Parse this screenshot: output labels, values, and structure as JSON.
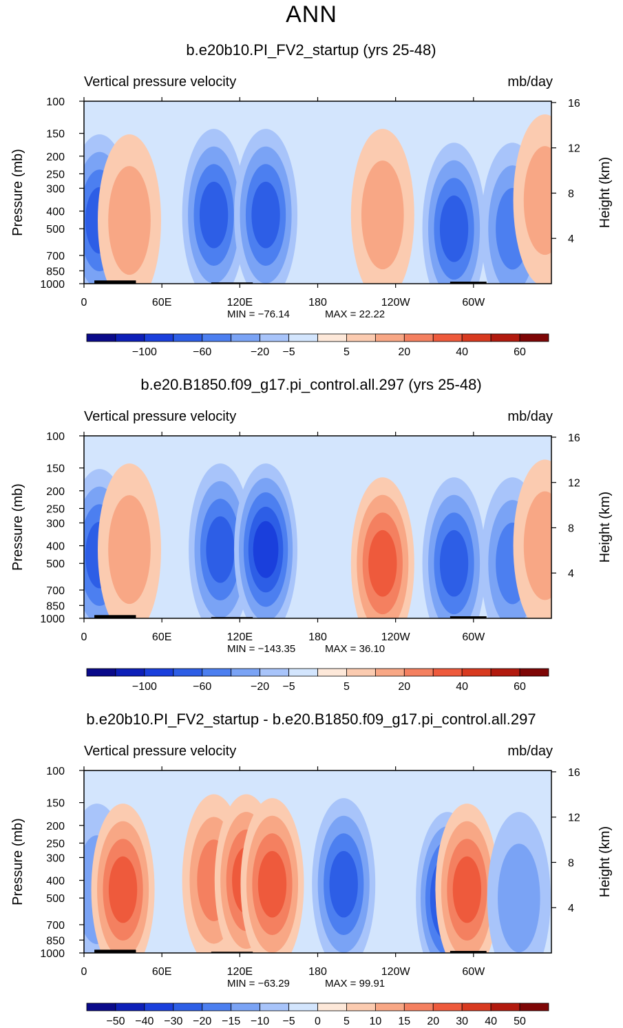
{
  "page_title": "ANN",
  "colors": {
    "bar_scale": [
      "#0a0a8a",
      "#0d1fb8",
      "#1a3fdc",
      "#2d5ee6",
      "#4c7ff0",
      "#7aa3f5",
      "#a8c4fa",
      "#d3e5fd",
      "#fde8d9",
      "#fbcbb0",
      "#f8a785",
      "#f48060",
      "#ee5a3c",
      "#d83a20",
      "#b21a0e",
      "#7e0606"
    ],
    "grid_line": "#000000",
    "topography": "#000000"
  },
  "chart_data": [
    {
      "type": "heatmap",
      "title": "b.e20b10.PI_FV2_startup (yrs 25-48)",
      "left_label": "Vertical pressure velocity",
      "right_label": "mb/day",
      "ylabel_left": "Pressure (mb)",
      "ylabel_right": "Height (km)",
      "x_ticks": [
        "0",
        "60E",
        "120E",
        "180",
        "120W",
        "60W"
      ],
      "x_tick_values": [
        0,
        60,
        120,
        180,
        240,
        300
      ],
      "xlim": [
        0,
        360
      ],
      "y_ticks": [
        "100",
        "150",
        "200",
        "250",
        "300",
        "400",
        "500",
        "700",
        "850",
        "1000"
      ],
      "y_tick_values": [
        100,
        150,
        200,
        250,
        300,
        400,
        500,
        700,
        850,
        1000
      ],
      "ylim": [
        1000,
        100
      ],
      "height_ticks": [
        "16",
        "12",
        "8",
        "4"
      ],
      "height_values": [
        16,
        12,
        8,
        4
      ],
      "min_label": "MIN = −76.14",
      "max_label": "MAX =  22.22",
      "min": -76.14,
      "max": 22.22,
      "colorbar_labels": [
        "−100",
        "−60",
        "−20",
        "−5",
        "5",
        "20",
        "40",
        "60"
      ],
      "colorbar_levels": [
        -120,
        -100,
        -80,
        -60,
        -40,
        -20,
        -10,
        -5,
        0,
        5,
        10,
        20,
        30,
        40,
        50,
        60,
        80
      ],
      "features": [
        {
          "lon": 12,
          "p": 450,
          "value": -40
        },
        {
          "lon": 35,
          "p": 450,
          "value": 18
        },
        {
          "lon": 100,
          "p": 420,
          "value": -45
        },
        {
          "lon": 140,
          "p": 420,
          "value": -52
        },
        {
          "lon": 230,
          "p": 420,
          "value": 18
        },
        {
          "lon": 285,
          "p": 500,
          "value": -40
        },
        {
          "lon": 330,
          "p": 500,
          "value": -25
        },
        {
          "lon": 355,
          "p": 350,
          "value": 12
        }
      ],
      "topo": [
        {
          "lon_from": 8,
          "lon_to": 40,
          "height_mb": 40
        },
        {
          "lon_from": 98,
          "lon_to": 130,
          "height_mb": 15
        },
        {
          "lon_from": 282,
          "lon_to": 310,
          "height_mb": 25
        }
      ]
    },
    {
      "type": "heatmap",
      "title": "b.e20.B1850.f09_g17.pi_control.all.297 (yrs 25-48)",
      "left_label": "Vertical pressure velocity",
      "right_label": "mb/day",
      "ylabel_left": "Pressure (mb)",
      "ylabel_right": "Height (km)",
      "x_ticks": [
        "0",
        "60E",
        "120E",
        "180",
        "120W",
        "60W"
      ],
      "x_tick_values": [
        0,
        60,
        120,
        180,
        240,
        300
      ],
      "xlim": [
        0,
        360
      ],
      "y_ticks": [
        "100",
        "150",
        "200",
        "250",
        "300",
        "400",
        "500",
        "700",
        "850",
        "1000"
      ],
      "y_tick_values": [
        100,
        150,
        200,
        250,
        300,
        400,
        500,
        700,
        850,
        1000
      ],
      "ylim": [
        1000,
        100
      ],
      "height_ticks": [
        "16",
        "12",
        "8",
        "4"
      ],
      "height_values": [
        16,
        12,
        8,
        4
      ],
      "min_label": "MIN = −143.35",
      "max_label": "MAX =  36.10",
      "min": -143.35,
      "max": 36.1,
      "colorbar_labels": [
        "−100",
        "−60",
        "−20",
        "−5",
        "5",
        "20",
        "40",
        "60"
      ],
      "colorbar_levels": [
        -120,
        -100,
        -80,
        -60,
        -40,
        -20,
        -10,
        -5,
        0,
        5,
        10,
        20,
        30,
        40,
        50,
        60,
        80
      ],
      "features": [
        {
          "lon": 12,
          "p": 450,
          "value": -45
        },
        {
          "lon": 35,
          "p": 420,
          "value": 18
        },
        {
          "lon": 105,
          "p": 420,
          "value": -55
        },
        {
          "lon": 140,
          "p": 420,
          "value": -60
        },
        {
          "lon": 230,
          "p": 500,
          "value": 32
        },
        {
          "lon": 285,
          "p": 500,
          "value": -55
        },
        {
          "lon": 330,
          "p": 500,
          "value": -30
        },
        {
          "lon": 355,
          "p": 400,
          "value": 14
        }
      ],
      "topo": [
        {
          "lon_from": 8,
          "lon_to": 40,
          "height_mb": 40
        },
        {
          "lon_from": 98,
          "lon_to": 130,
          "height_mb": 15
        },
        {
          "lon_from": 282,
          "lon_to": 310,
          "height_mb": 25
        }
      ]
    },
    {
      "type": "heatmap",
      "title": "b.e20b10.PI_FV2_startup - b.e20.B1850.f09_g17.pi_control.all.297",
      "left_label": "Vertical pressure velocity",
      "right_label": "mb/day",
      "ylabel_left": "Pressure (mb)",
      "ylabel_right": "Height (km)",
      "x_ticks": [
        "0",
        "60E",
        "120E",
        "180",
        "120W",
        "60W"
      ],
      "x_tick_values": [
        0,
        60,
        120,
        180,
        240,
        300
      ],
      "xlim": [
        0,
        360
      ],
      "y_ticks": [
        "100",
        "150",
        "200",
        "250",
        "300",
        "400",
        "500",
        "700",
        "850",
        "1000"
      ],
      "y_tick_values": [
        100,
        150,
        200,
        250,
        300,
        400,
        500,
        700,
        850,
        1000
      ],
      "ylim": [
        1000,
        100
      ],
      "height_ticks": [
        "16",
        "12",
        "8",
        "4"
      ],
      "height_values": [
        16,
        12,
        8,
        4
      ],
      "min_label": "MIN = −63.29",
      "max_label": "MAX =  99.91",
      "min": -63.29,
      "max": 99.91,
      "colorbar_labels": [
        "−50",
        "−40",
        "−30",
        "−20",
        "−15",
        "−10",
        "−5",
        "0",
        "5",
        "10",
        "15",
        "20",
        "30",
        "40",
        "50"
      ],
      "colorbar_levels": [
        -60,
        -50,
        -40,
        -30,
        -20,
        -15,
        -10,
        -5,
        0,
        5,
        10,
        15,
        20,
        30,
        40,
        50,
        60
      ],
      "features": [
        {
          "lon": 10,
          "p": 450,
          "value": -12
        },
        {
          "lon": 30,
          "p": 450,
          "value": 25
        },
        {
          "lon": 100,
          "p": 400,
          "value": 15
        },
        {
          "lon": 125,
          "p": 400,
          "value": 22
        },
        {
          "lon": 145,
          "p": 420,
          "value": 28
        },
        {
          "lon": 200,
          "p": 420,
          "value": -20
        },
        {
          "lon": 280,
          "p": 500,
          "value": -35
        },
        {
          "lon": 295,
          "p": 450,
          "value": 25
        },
        {
          "lon": 335,
          "p": 500,
          "value": -10
        }
      ],
      "topo": [
        {
          "lon_from": 8,
          "lon_to": 40,
          "height_mb": 40
        },
        {
          "lon_from": 98,
          "lon_to": 130,
          "height_mb": 15
        },
        {
          "lon_from": 282,
          "lon_to": 310,
          "height_mb": 25
        }
      ]
    }
  ]
}
